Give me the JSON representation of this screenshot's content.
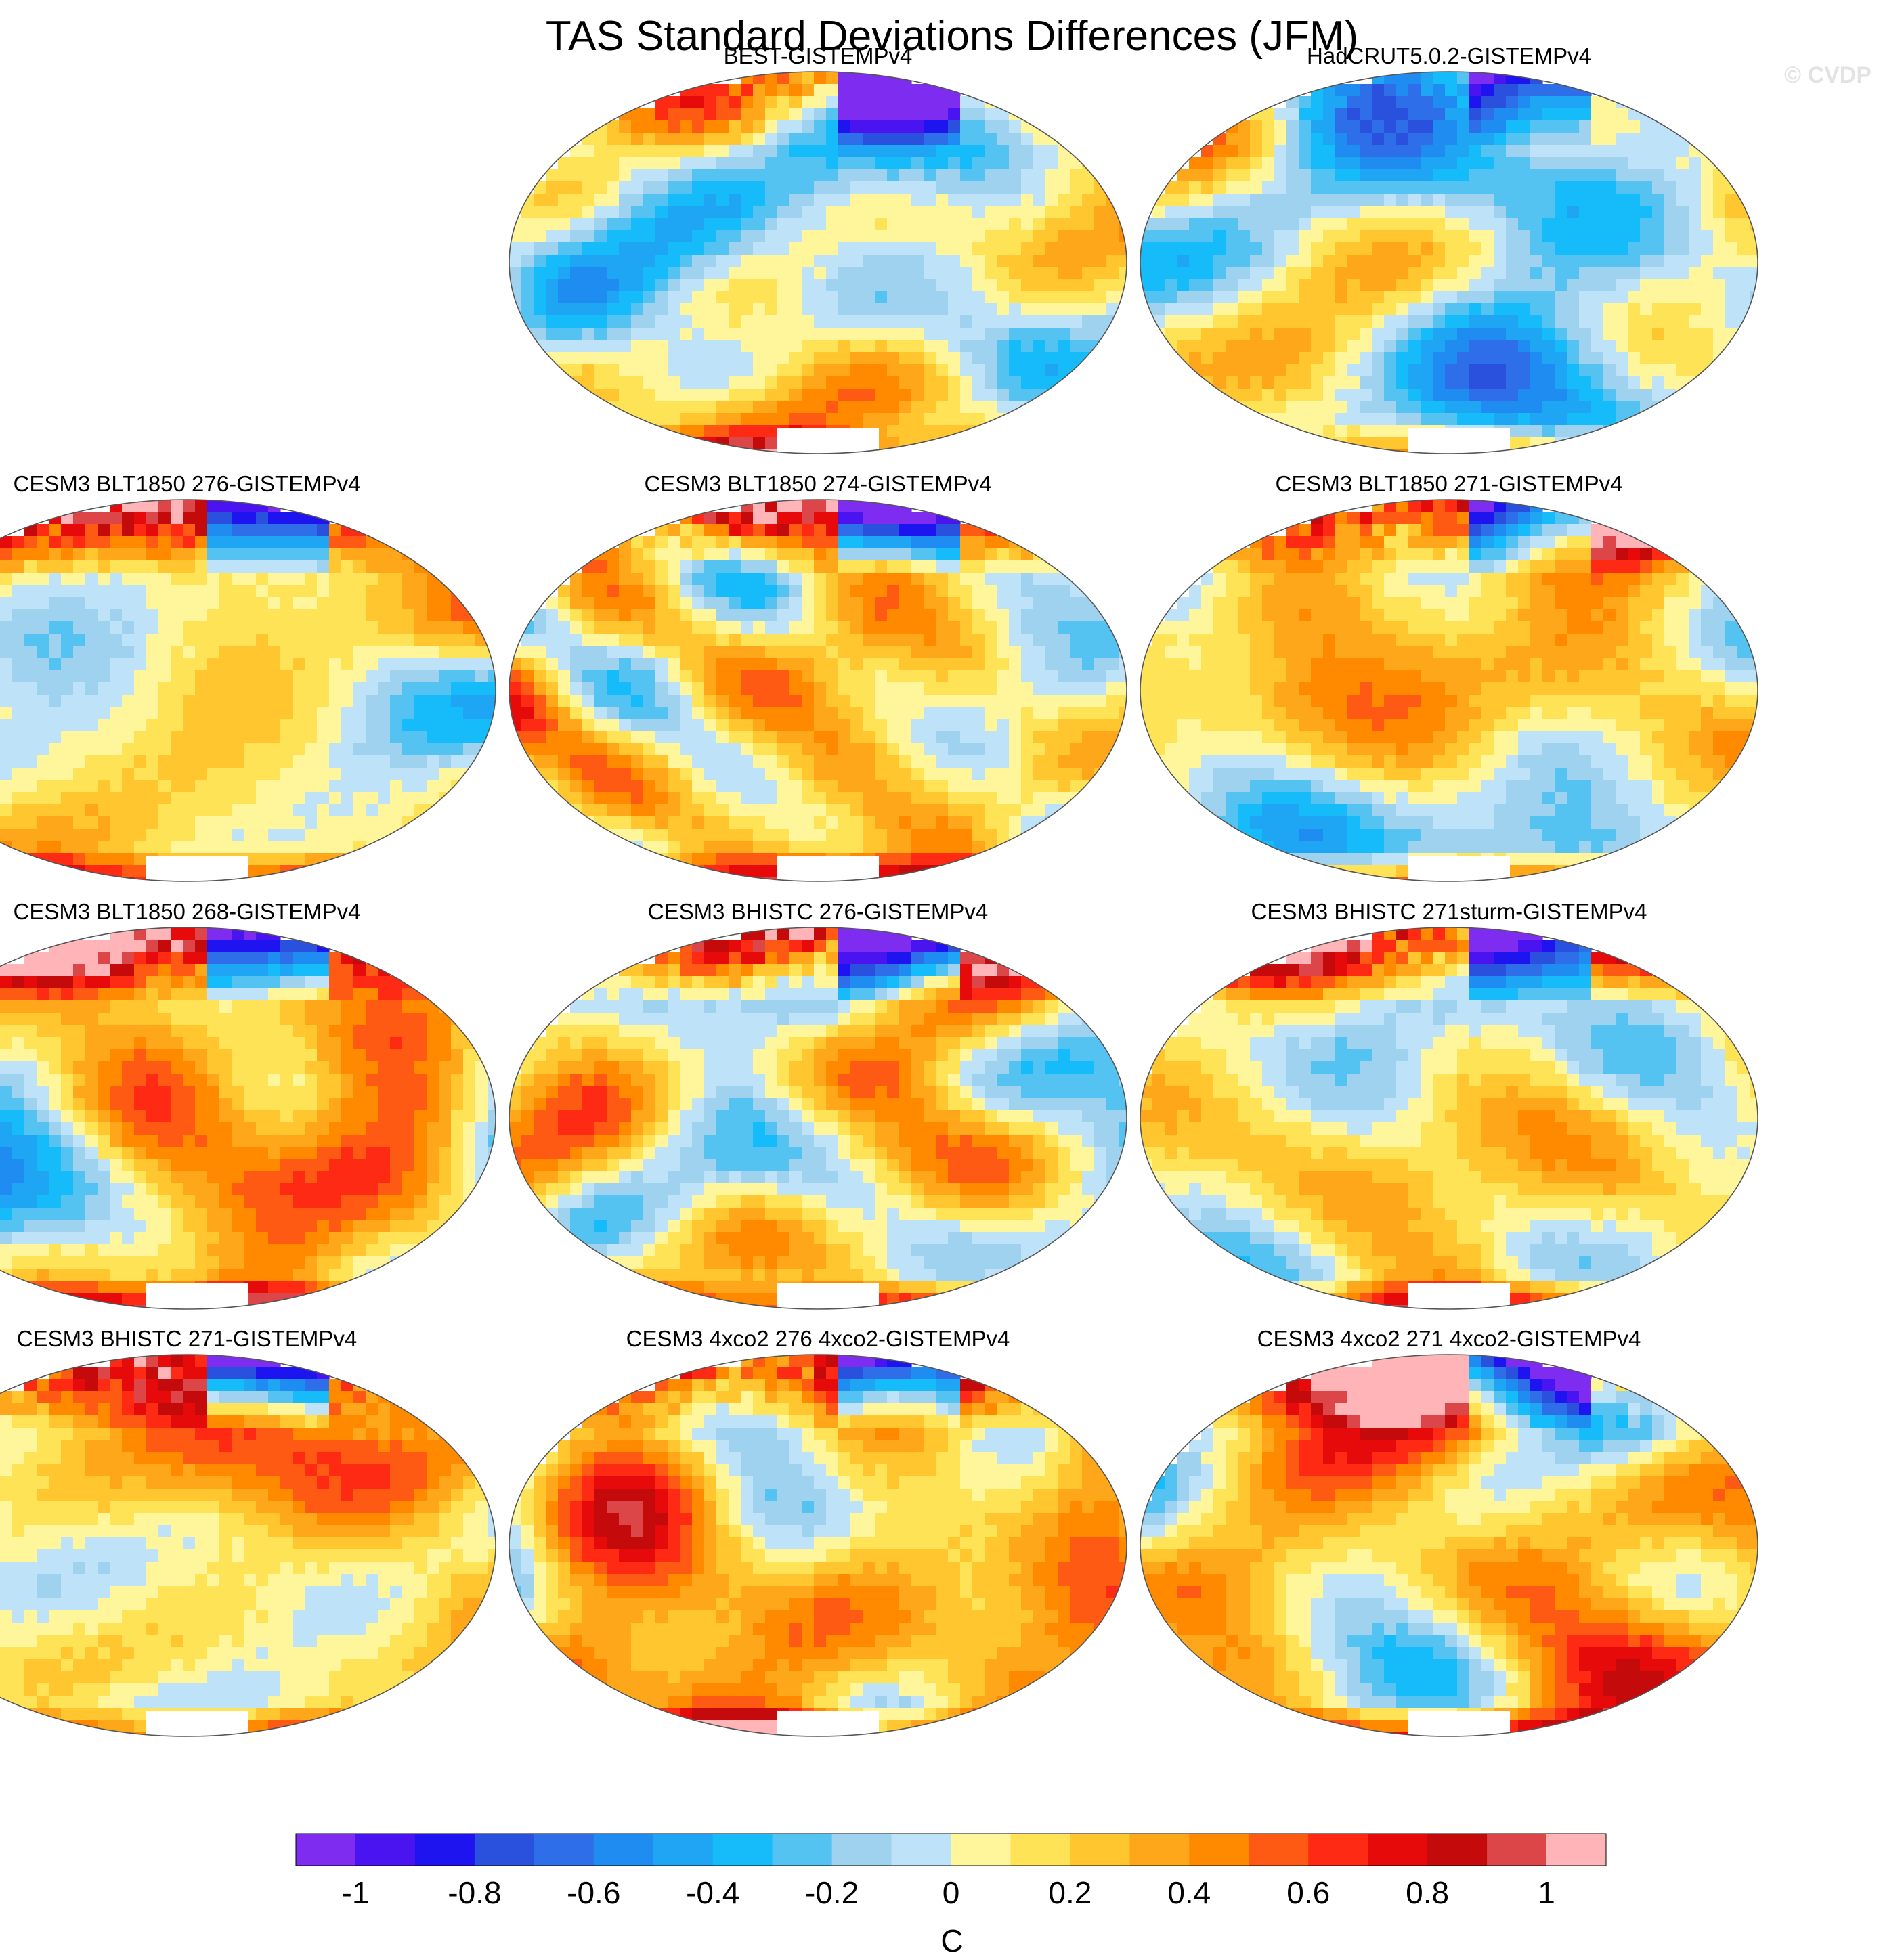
{
  "title": "TAS Standard Deviations Differences (JFM)",
  "watermark": "© CVDP",
  "colorbar": {
    "unit": "C",
    "levels": [
      -1,
      -0.9,
      -0.8,
      -0.7,
      -0.6,
      -0.5,
      -0.4,
      -0.3,
      -0.2,
      -0.1,
      0,
      0.1,
      0.2,
      0.3,
      0.4,
      0.5,
      0.6,
      0.7,
      0.8,
      0.9,
      1
    ],
    "tick_labels": [
      "-1",
      "-0.8",
      "-0.6",
      "-0.4",
      "-0.2",
      "0",
      "0.2",
      "0.4",
      "0.6",
      "0.8",
      "1"
    ],
    "tick_values": [
      -1,
      -0.8,
      -0.6,
      -0.4,
      -0.2,
      0,
      0.2,
      0.4,
      0.6,
      0.8,
      1
    ],
    "colors": [
      "#7d2cf0",
      "#4a14f0",
      "#1e14f0",
      "#2a50de",
      "#2e6ee8",
      "#1e8cf0",
      "#1ea6f5",
      "#16bcfa",
      "#55c3f2",
      "#9fd2ee",
      "#bee2f7",
      "#fff59b",
      "#ffe357",
      "#ffc630",
      "#ffa71a",
      "#ff8a00",
      "#ff5a14",
      "#ff2a14",
      "#e60a0a",
      "#c40a0a",
      "#dc4648",
      "#ffb4b8"
    ]
  },
  "panels": [
    {
      "label": "BEST-GISTEMPv4",
      "seed": 11
    },
    {
      "label": "HadCRUT5.0.2-GISTEMPv4",
      "seed": 23
    },
    {
      "label": "CESM3 BLT1850 276-GISTEMPv4",
      "seed": 37
    },
    {
      "label": "CESM3 BLT1850 274-GISTEMPv4",
      "seed": 41
    },
    {
      "label": "CESM3 BLT1850 271-GISTEMPv4",
      "seed": 53
    },
    {
      "label": "CESM3 BLT1850 268-GISTEMPv4",
      "seed": 67
    },
    {
      "label": "CESM3 BHISTC 276-GISTEMPv4",
      "seed": 71
    },
    {
      "label": "CESM3 BHISTC 271sturm-GISTEMPv4",
      "seed": 83
    },
    {
      "label": "CESM3 BHISTC 271-GISTEMPv4",
      "seed": 97
    },
    {
      "label": "CESM3 4xco2 276 4xco2-GISTEMPv4",
      "seed": 101
    },
    {
      "label": "CESM3 4xco2 271 4xco2-GISTEMPv4",
      "seed": 113
    }
  ]
}
